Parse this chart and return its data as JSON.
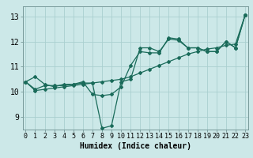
{
  "title": "",
  "xlabel": "Humidex (Indice chaleur)",
  "ylabel": "",
  "bg_color": "#cce8e8",
  "grid_color": "#aacfcf",
  "line_color": "#1a6b5a",
  "x_ticks": [
    0,
    1,
    2,
    3,
    4,
    5,
    6,
    7,
    8,
    9,
    10,
    11,
    12,
    13,
    14,
    15,
    16,
    17,
    18,
    19,
    20,
    21,
    22,
    23
  ],
  "y_ticks": [
    9,
    10,
    11,
    12,
    13
  ],
  "xlim": [
    -0.3,
    23.3
  ],
  "ylim": [
    8.5,
    13.4
  ],
  "lines": [
    [
      10.4,
      10.6,
      10.3,
      10.2,
      10.3,
      10.3,
      10.4,
      9.9,
      9.85,
      9.9,
      10.2,
      11.05,
      11.6,
      11.55,
      11.55,
      12.15,
      12.1,
      11.75,
      11.75,
      11.6,
      11.6,
      12.0,
      11.75,
      13.05
    ],
    [
      10.4,
      10.1,
      10.25,
      10.25,
      10.25,
      10.3,
      10.35,
      10.35,
      8.55,
      8.65,
      10.4,
      10.5,
      11.75,
      11.75,
      11.6,
      12.1,
      12.05,
      11.75,
      11.75,
      11.6,
      11.6,
      12.0,
      11.75,
      13.05
    ],
    [
      10.4,
      10.05,
      10.1,
      10.15,
      10.2,
      10.25,
      10.3,
      10.35,
      10.4,
      10.45,
      10.5,
      10.6,
      10.75,
      10.9,
      11.05,
      11.2,
      11.35,
      11.5,
      11.6,
      11.7,
      11.75,
      11.85,
      11.9,
      13.05
    ]
  ],
  "tick_fontsize": 6,
  "xlabel_fontsize": 7
}
